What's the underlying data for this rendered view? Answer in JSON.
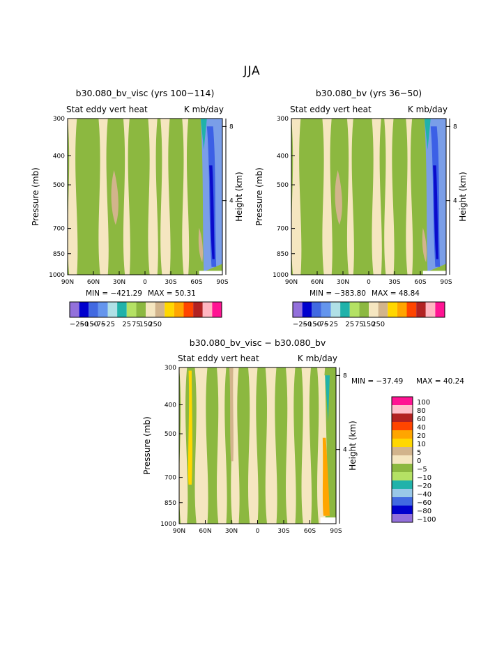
{
  "page_title": "JJA",
  "colors": {
    "green": "#8cb840",
    "beige": "#f5e6c0",
    "tan": "#d2b48c",
    "lightgreen": "#b5e161",
    "palegreen": "#c8e88a",
    "blue_dark": "#0a0ccc",
    "blue_mid": "#3c60e6",
    "blue_light": "#7a9ee8",
    "cyan": "#99d0e6",
    "teal": "#20b2aa",
    "orange": "#ffa500",
    "yellow": "#ffd700"
  },
  "chart_data": [
    {
      "type": "heatmap",
      "title": "b30.080_bv_visc (yrs 100−114)",
      "subtitle_left": "Stat eddy vert heat",
      "subtitle_right": "K mb/day",
      "ylabel": "Pressure (mb)",
      "y2label": "Height (km)",
      "x_ticks": [
        "90N",
        "60N",
        "30N",
        "0",
        "30S",
        "60S",
        "90S"
      ],
      "y_ticks": [
        "300",
        "400",
        "500",
        "700",
        "850",
        "1000"
      ],
      "y_tick_values": [
        300,
        400,
        500,
        700,
        850,
        1000
      ],
      "y2_ticks": [
        "8",
        "4"
      ],
      "y2_tick_values": [
        8,
        4
      ],
      "min_label": "MIN = −421.29",
      "max_label": "MAX =  50.31",
      "colorbar_labels": [
        "−250",
        "−150",
        "−75",
        "−25",
        "25",
        "75",
        "150",
        "250"
      ],
      "colorbar_colors": [
        "#9370db",
        "#0000cd",
        "#4169e1",
        "#6495ed",
        "#b0e0e6",
        "#20b2aa",
        "#b4e164",
        "#8cb840",
        "#f5e6c0",
        "#d2b48c",
        "#ffd700",
        "#ffa500",
        "#ff4500",
        "#b22222",
        "#ffb6c1",
        "#ff1493"
      ]
    },
    {
      "type": "heatmap",
      "title": "b30.080_bv (yrs 36−50)",
      "subtitle_left": "Stat eddy vert heat",
      "subtitle_right": "K mb/day",
      "ylabel": "Pressure (mb)",
      "y2label": "Height (km)",
      "x_ticks": [
        "90N",
        "60N",
        "30N",
        "0",
        "30S",
        "60S",
        "90S"
      ],
      "y_ticks": [
        "300",
        "400",
        "500",
        "700",
        "850",
        "1000"
      ],
      "y_tick_values": [
        300,
        400,
        500,
        700,
        850,
        1000
      ],
      "y2_ticks": [
        "8",
        "4"
      ],
      "y2_tick_values": [
        8,
        4
      ],
      "min_label": "MIN = −383.80",
      "max_label": "MAX =  48.84",
      "colorbar_labels": [
        "−250",
        "−150",
        "−75",
        "−25",
        "25",
        "75",
        "150",
        "250"
      ],
      "colorbar_colors": [
        "#9370db",
        "#0000cd",
        "#4169e1",
        "#6495ed",
        "#b0e0e6",
        "#20b2aa",
        "#b4e164",
        "#8cb840",
        "#f5e6c0",
        "#d2b48c",
        "#ffd700",
        "#ffa500",
        "#ff4500",
        "#b22222",
        "#ffb6c1",
        "#ff1493"
      ]
    },
    {
      "type": "heatmap",
      "title": "b30.080_bv_visc − b30.080_bv",
      "subtitle_left": "Stat eddy vert heat",
      "subtitle_right": "K mb/day",
      "ylabel": "Pressure (mb)",
      "y2label": "Height (km)",
      "x_ticks": [
        "90N",
        "60N",
        "30N",
        "0",
        "30S",
        "60S",
        "90S"
      ],
      "y_ticks": [
        "300",
        "400",
        "500",
        "700",
        "850",
        "1000"
      ],
      "y_tick_values": [
        300,
        400,
        500,
        700,
        850,
        1000
      ],
      "y2_ticks": [
        "8",
        "4"
      ],
      "y2_tick_values": [
        8,
        4
      ],
      "min_label": "MIN = −37.49",
      "max_label": "MAX =  40.24",
      "colorbar_labels": [
        "100",
        "80",
        "60",
        "40",
        "20",
        "10",
        "5",
        "0",
        "−5",
        "−10",
        "−20",
        "−40",
        "−60",
        "−80",
        "−100"
      ],
      "colorbar_colors": [
        "#ff1493",
        "#ffc0cb",
        "#b22222",
        "#ff4500",
        "#ffa500",
        "#ffd700",
        "#d2b48c",
        "#f5e6c0",
        "#8cb840",
        "#b4e164",
        "#20b2aa",
        "#99c8e8",
        "#4169e1",
        "#0000cd",
        "#9370db"
      ]
    }
  ]
}
